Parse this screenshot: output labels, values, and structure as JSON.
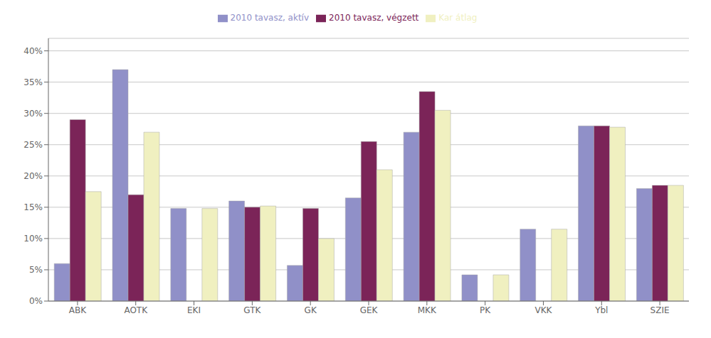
{
  "chart_data": {
    "type": "bar",
    "categories": [
      "ABK",
      "AOTK",
      "EKI",
      "GTK",
      "GK",
      "GEK",
      "MKK",
      "PK",
      "VKK",
      "Ybl",
      "SZIE"
    ],
    "series": [
      {
        "name": "2010 tavasz, aktív",
        "color": "#9090C8",
        "values": [
          0.06,
          0.37,
          0.148,
          0.16,
          0.057,
          0.165,
          0.27,
          0.042,
          0.115,
          0.28,
          0.18
        ]
      },
      {
        "name": "2010 tavasz, végzett",
        "color": "#7B2458",
        "values": [
          0.29,
          0.17,
          0.0,
          0.15,
          0.148,
          0.255,
          0.335,
          0.0,
          0.0,
          0.28,
          0.185
        ]
      },
      {
        "name": "Kar átlag",
        "color": "#F0F0C0",
        "values": [
          0.175,
          0.27,
          0.148,
          0.152,
          0.1,
          0.21,
          0.305,
          0.042,
          0.115,
          0.278,
          0.185
        ]
      }
    ],
    "ylim": [
      0,
      0.42
    ],
    "yticks": [
      {
        "value": 0.0,
        "label": "0%"
      },
      {
        "value": 0.05,
        "label": "5%"
      },
      {
        "value": 0.1,
        "label": "10%"
      },
      {
        "value": 0.15,
        "label": "15%"
      },
      {
        "value": 0.2,
        "label": "20%"
      },
      {
        "value": 0.25,
        "label": "25%"
      },
      {
        "value": 0.3,
        "label": "30%"
      },
      {
        "value": 0.35,
        "label": "35%"
      },
      {
        "value": 0.4,
        "label": "40%"
      }
    ],
    "grid": true,
    "legend": "upper center"
  }
}
